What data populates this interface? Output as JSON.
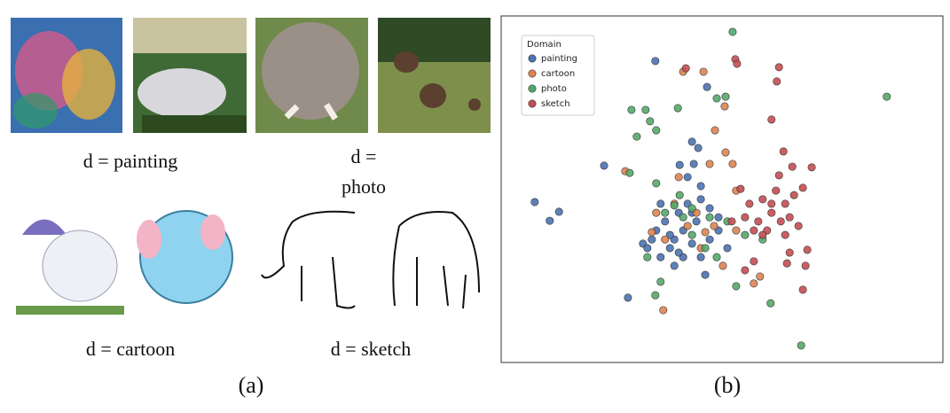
{
  "panel_a": {
    "labels": [
      "d = painting",
      "d = photo",
      "d = cartoon",
      "d = sketch"
    ],
    "caption": "(a)"
  },
  "panel_b": {
    "caption": "(b)"
  },
  "chart_data": {
    "type": "scatter",
    "legend_title": "Domain",
    "legend": "upper left",
    "xlim": [
      0,
      100
    ],
    "ylim": [
      0,
      100
    ],
    "series": [
      {
        "name": "painting",
        "color": "#4c72b0",
        "x": [
          34.9,
          46.6,
          43.2,
          44.6,
          40.4,
          43.6,
          23.3,
          7.6,
          13.1,
          11.0,
          28.7,
          39.2,
          36.1,
          34.1,
          37.1,
          40.2,
          42.2,
          45.2,
          47.2,
          49.2,
          41.2,
          43.2,
          38.2,
          35.1,
          32.1,
          45.2,
          41.2,
          47.2,
          36.1,
          42.2,
          45.2,
          49.2,
          33.1,
          39.2,
          44.2,
          46.2,
          51.2,
          38.2,
          40.2,
          43.2
        ],
        "values": [
          87.0,
          79.5,
          63.7,
          61.9,
          57.0,
          57.3,
          56.8,
          46.3,
          43.5,
          40.9,
          18.7,
          27.9,
          30.4,
          35.5,
          40.7,
          43.2,
          45.8,
          47.1,
          44.5,
          41.9,
          38.1,
          34.3,
          33.0,
          38.1,
          34.3,
          30.4,
          30.4,
          35.5,
          45.8,
          53.5,
          50.9,
          38.1,
          33.0,
          35.5,
          40.7,
          25.3,
          33.0,
          36.8,
          31.7,
          43.2
        ]
      },
      {
        "name": "cartoon",
        "color": "#dd8452",
        "x": [
          41.2,
          45.8,
          50.6,
          48.4,
          50.8,
          52.4,
          28.1,
          40.2,
          47.2,
          53.2,
          35.1,
          39.2,
          44.2,
          37.1,
          45.2,
          50.2,
          57.2,
          58.6,
          36.7,
          48.2,
          42.2,
          34.1,
          46.2,
          53.2
        ],
        "values": [
          83.9,
          83.9,
          73.9,
          67.0,
          60.6,
          57.3,
          55.2,
          53.5,
          57.3,
          49.6,
          43.2,
          45.8,
          43.2,
          35.5,
          33.0,
          27.9,
          22.8,
          24.8,
          15.1,
          39.4,
          39.4,
          37.6,
          37.6,
          38.1
        ]
      },
      {
        "name": "photo",
        "color": "#55a868",
        "x": [
          52.4,
          87.3,
          67.9,
          50.8,
          48.8,
          29.5,
          32.7,
          33.7,
          40.0,
          30.7,
          35.1,
          29.1,
          35.1,
          40.4,
          37.1,
          41.2,
          39.2,
          43.2,
          47.2,
          51.2,
          55.2,
          59.2,
          48.8,
          46.2,
          53.2,
          61.0,
          34.9,
          36.1,
          33.1,
          43.2
        ],
        "values": [
          95.4,
          76.7,
          4.9,
          76.7,
          76.2,
          72.9,
          72.9,
          69.6,
          73.4,
          65.2,
          67.0,
          54.7,
          51.7,
          48.3,
          43.2,
          41.9,
          45.3,
          44.5,
          41.9,
          40.7,
          36.8,
          35.5,
          30.4,
          33.0,
          22.0,
          17.1,
          19.4,
          23.3,
          30.4,
          36.8
        ]
      },
      {
        "name": "sketch",
        "color": "#c44e52",
        "x": [
          53.0,
          53.4,
          62.9,
          62.4,
          41.8,
          61.2,
          63.9,
          65.9,
          70.3,
          68.3,
          62.9,
          62.2,
          54.2,
          56.2,
          59.2,
          61.2,
          63.3,
          65.3,
          58.2,
          55.2,
          52.2,
          60.2,
          64.3,
          57.2,
          61.2,
          66.3,
          64.3,
          67.3,
          65.3,
          64.7,
          69.3,
          68.9,
          68.3,
          57.2,
          55.2,
          59.2
        ],
        "values": [
          87.5,
          86.2,
          85.2,
          81.1,
          84.9,
          70.1,
          60.9,
          56.5,
          56.3,
          50.4,
          54.0,
          49.6,
          50.1,
          45.8,
          47.1,
          43.2,
          40.7,
          41.9,
          40.7,
          41.9,
          40.7,
          38.1,
          36.8,
          38.1,
          45.8,
          48.3,
          45.8,
          39.4,
          31.7,
          28.6,
          32.5,
          27.9,
          21.0,
          29.2,
          26.6,
          36.8
        ]
      }
    ]
  }
}
